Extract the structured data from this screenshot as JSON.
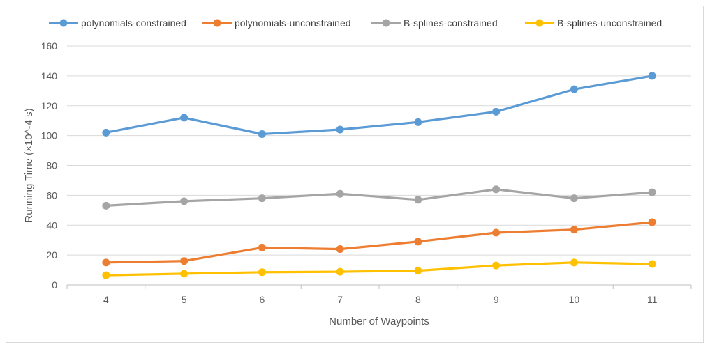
{
  "chart_data": {
    "type": "line",
    "title": "",
    "xlabel": "Number of Waypoints",
    "ylabel": "Running Time (×10^-4 s)",
    "categories": [
      "4",
      "5",
      "6",
      "7",
      "8",
      "9",
      "10",
      "11"
    ],
    "ylim": [
      0,
      160
    ],
    "yticks": [
      0,
      20,
      40,
      60,
      80,
      100,
      120,
      140,
      160
    ],
    "grid": true,
    "legend_position": "top",
    "series": [
      {
        "name": "polynomials-constrained",
        "color": "#5b9bd5",
        "values": [
          102,
          112,
          101,
          104,
          109,
          116,
          131,
          140
        ]
      },
      {
        "name": "polynomials-unconstrained",
        "color": "#ed7d31",
        "values": [
          15,
          16,
          25,
          24,
          29,
          35,
          37,
          42
        ]
      },
      {
        "name": "B-splines-constrained",
        "color": "#a5a5a5",
        "values": [
          53,
          56,
          58,
          61,
          57,
          64,
          58,
          62
        ]
      },
      {
        "name": "B-splines-unconstrained",
        "color": "#ffc000",
        "values": [
          6.5,
          7.5,
          8.5,
          8.8,
          9.5,
          13,
          15,
          14
        ]
      }
    ]
  }
}
